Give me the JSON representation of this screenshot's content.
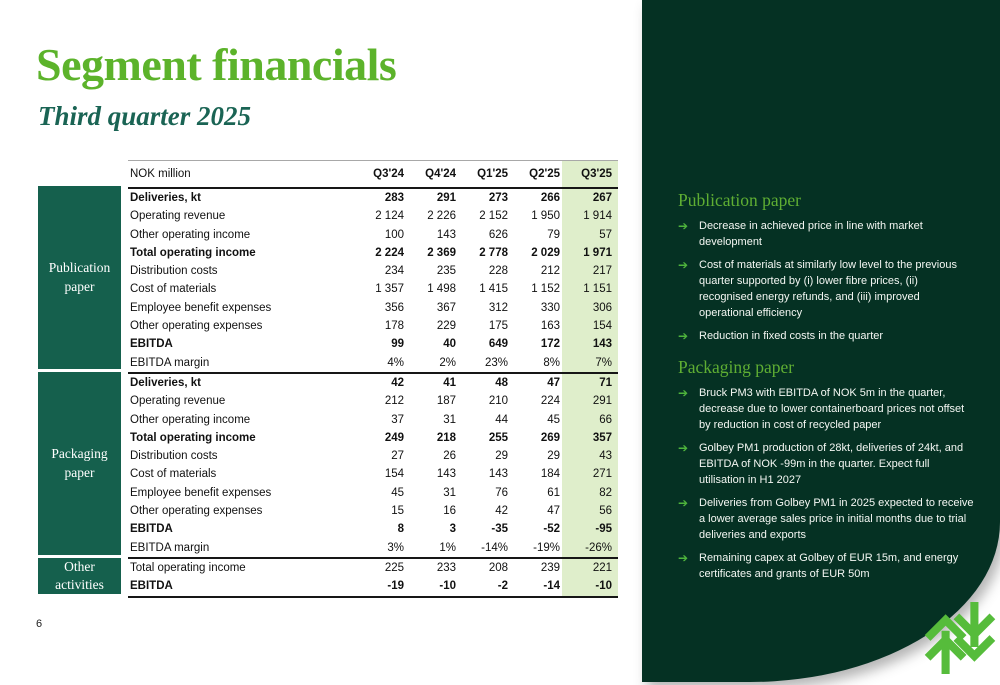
{
  "page": {
    "title": "Segment financials",
    "subtitle": "Third quarter 2025",
    "page_number": "6"
  },
  "colors": {
    "title_green": "#5CB32B",
    "subtitle_teal": "#1A6454",
    "segment_box_green": "#15604D",
    "panel_dark_green": "#053123",
    "highlight_column_green": "#DFEECB",
    "bullet_arrow_green": "#4EB43C",
    "logo_green": "#56BC3B"
  },
  "table": {
    "unit_label": "NOK million",
    "columns": [
      "Q3'24",
      "Q4'24",
      "Q1'25",
      "Q2'25",
      "Q3'25"
    ],
    "highlight_column": "Q3'25",
    "highlight_column_index": 4,
    "sections": [
      {
        "segment": "Publication paper",
        "rows": [
          {
            "label": "Deliveries, kt",
            "bold": true,
            "values": [
              "283",
              "291",
              "273",
              "266",
              "267"
            ]
          },
          {
            "label": "Operating revenue",
            "bold": false,
            "values": [
              "2 124",
              "2 226",
              "2 152",
              "1 950",
              "1 914"
            ]
          },
          {
            "label": "Other operating income",
            "bold": false,
            "values": [
              "100",
              "143",
              "626",
              "79",
              "57"
            ]
          },
          {
            "label": "Total operating income",
            "bold": true,
            "values": [
              "2 224",
              "2 369",
              "2 778",
              "2 029",
              "1 971"
            ]
          },
          {
            "label": "Distribution costs",
            "bold": false,
            "values": [
              "234",
              "235",
              "228",
              "212",
              "217"
            ]
          },
          {
            "label": "Cost of materials",
            "bold": false,
            "values": [
              "1 357",
              "1 498",
              "1 415",
              "1 152",
              "1 151"
            ]
          },
          {
            "label": "Employee benefit expenses",
            "bold": false,
            "values": [
              "356",
              "367",
              "312",
              "330",
              "306"
            ]
          },
          {
            "label": "Other operating expenses",
            "bold": false,
            "values": [
              "178",
              "229",
              "175",
              "163",
              "154"
            ]
          },
          {
            "label": "EBITDA",
            "bold": true,
            "values": [
              "99",
              "40",
              "649",
              "172",
              "143"
            ]
          },
          {
            "label": "EBITDA margin",
            "bold": false,
            "values": [
              "4%",
              "2%",
              "23%",
              "8%",
              "7%"
            ]
          }
        ]
      },
      {
        "segment": "Packaging paper",
        "rows": [
          {
            "label": "Deliveries, kt",
            "bold": true,
            "values": [
              "42",
              "41",
              "48",
              "47",
              "71"
            ]
          },
          {
            "label": "Operating revenue",
            "bold": false,
            "values": [
              "212",
              "187",
              "210",
              "224",
              "291"
            ]
          },
          {
            "label": "Other operating income",
            "bold": false,
            "values": [
              "37",
              "31",
              "44",
              "45",
              "66"
            ]
          },
          {
            "label": "Total operating income",
            "bold": true,
            "values": [
              "249",
              "218",
              "255",
              "269",
              "357"
            ]
          },
          {
            "label": "Distribution costs",
            "bold": false,
            "values": [
              "27",
              "26",
              "29",
              "29",
              "43"
            ]
          },
          {
            "label": "Cost of materials",
            "bold": false,
            "values": [
              "154",
              "143",
              "143",
              "184",
              "271"
            ]
          },
          {
            "label": "Employee benefit expenses",
            "bold": false,
            "values": [
              "45",
              "31",
              "76",
              "61",
              "82"
            ]
          },
          {
            "label": "Other operating expenses",
            "bold": false,
            "values": [
              "15",
              "16",
              "42",
              "47",
              "56"
            ]
          },
          {
            "label": "EBITDA",
            "bold": true,
            "values": [
              "8",
              "3",
              "-35",
              "-52",
              "-95"
            ]
          },
          {
            "label": "EBITDA margin",
            "bold": false,
            "values": [
              "3%",
              "1%",
              "-14%",
              "-19%",
              "-26%"
            ]
          }
        ]
      },
      {
        "segment": "Other activities",
        "rows": [
          {
            "label": "Total operating income",
            "bold": false,
            "values": [
              "225",
              "233",
              "208",
              "239",
              "221"
            ]
          },
          {
            "label": "EBITDA",
            "bold": true,
            "values": [
              "-19",
              "-10",
              "-2",
              "-14",
              "-10"
            ]
          }
        ]
      }
    ]
  },
  "sidebar": {
    "bullet_icon": "➔",
    "logo_icon": "norske-skog-tree-logo",
    "sections": [
      {
        "heading": "Publication paper",
        "bullets": [
          "Decrease in achieved price in line with market development",
          "Cost of materials at similarly low level to the previous quarter supported by (i) lower fibre prices, (ii) recognised energy refunds, and (iii) improved operational efficiency",
          "Reduction in fixed costs in the quarter"
        ]
      },
      {
        "heading": "Packaging paper",
        "bullets": [
          "Bruck PM3 with EBITDA of NOK 5m in the quarter, decrease due to lower containerboard prices not offset by reduction in cost of recycled paper",
          "Golbey PM1 production of 28kt, deliveries of 24kt, and EBITDA of NOK -99m in the quarter. Expect full utilisation in H1 2027",
          "Deliveries from Golbey PM1 in 2025 expected to receive a lower average sales price in initial months due to trial deliveries and exports",
          "Remaining capex at Golbey of EUR 15m, and energy certificates and grants of EUR 50m"
        ]
      }
    ]
  }
}
